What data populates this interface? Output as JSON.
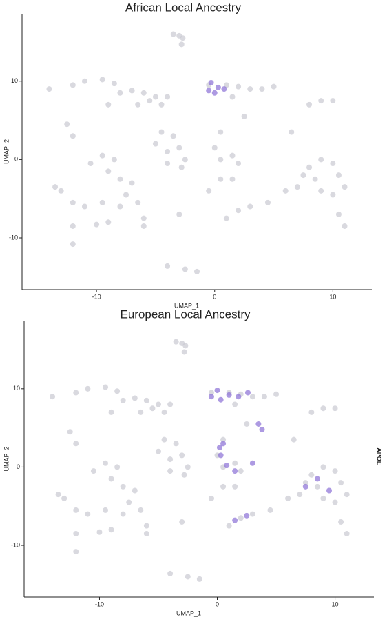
{
  "chart_data": [
    {
      "type": "scatter",
      "title": "African Local Ancestry",
      "x_label": "UMAP_1",
      "y_label": "UMAP_2",
      "xlim": [
        -16.3,
        13.3
      ],
      "ylim": [
        -16.6,
        18.6
      ],
      "xticks": [
        -10,
        0,
        10
      ],
      "yticks": [
        -10,
        0,
        10
      ],
      "series": [
        {
          "color": "#c9c9d1",
          "x": [
            -3.5,
            -3,
            -2.7,
            -2.8,
            -14,
            -12,
            -11,
            -9.5,
            -8.5,
            -8,
            -7,
            -6,
            -5.5,
            -6.5,
            -5,
            -4,
            -4.5,
            -9,
            -12.5,
            -12,
            -4.5,
            -5,
            -4,
            -3,
            -3.5,
            -2.5,
            -2.8,
            -4,
            -10.5,
            -9.5,
            -8.5,
            -9,
            -8,
            -7,
            -7.5,
            -6.5,
            -8,
            -9.5,
            -11,
            -12,
            -13,
            -13.5,
            -12,
            -10,
            -9,
            -6,
            -6,
            -12,
            -3,
            0.5,
            1.5,
            1,
            2,
            3,
            4.5,
            6,
            7,
            7.5,
            8,
            9,
            10,
            10.5,
            11,
            10,
            9,
            8.5,
            10.5,
            11,
            -0.5,
            1,
            2,
            3,
            4,
            5,
            1.5,
            2.5,
            8,
            9,
            10,
            6.5,
            0.5,
            0,
            0.5,
            1.5,
            2,
            -0.5,
            -2.5,
            -1.5,
            -4
          ],
          "y": [
            16,
            15.8,
            15.5,
            14.7,
            9,
            9.5,
            10,
            10.2,
            9.7,
            8.5,
            8.8,
            8.5,
            7.5,
            7,
            8,
            8,
            7,
            7,
            4.5,
            3,
            3.5,
            2,
            1,
            1.5,
            3,
            0,
            -1,
            -0.5,
            -0.5,
            0.5,
            0,
            -1.5,
            -2.5,
            -3,
            -4.5,
            -5.5,
            -6,
            -5.5,
            -6,
            -5.5,
            -4,
            -3.5,
            -8.5,
            -8.3,
            -8,
            -7.5,
            -8.5,
            -10.8,
            -7,
            -2.5,
            -2.5,
            -7.5,
            -6.5,
            -6,
            -5.5,
            -4,
            -3.5,
            -2,
            -1,
            0,
            -0.5,
            -2,
            -3.5,
            -4.5,
            -4,
            -2.5,
            -7,
            -8.5,
            9.5,
            9.5,
            9.3,
            9,
            9,
            9.3,
            8,
            5.5,
            7,
            7.5,
            7.5,
            3.5,
            3.5,
            1.5,
            0,
            0.5,
            -0.5,
            -4,
            -14,
            -14.3,
            -13.6
          ]
        },
        {
          "color": "#8a6fd6",
          "x": [
            -0.5,
            0,
            0.8,
            -0.3,
            0.3
          ],
          "y": [
            8.8,
            8.5,
            9,
            9.8,
            9.2
          ]
        }
      ]
    },
    {
      "type": "scatter",
      "title": "European Local Ancestry",
      "x_label": "UMAP_1",
      "y_label": "UMAP_2",
      "annotation": "APOE",
      "xlim": [
        -16.4,
        13.3
      ],
      "ylim": [
        -16.6,
        18.7
      ],
      "xticks": [
        -10,
        0,
        10
      ],
      "yticks": [
        -10,
        0,
        10
      ],
      "series": [
        {
          "color": "#c9c9d1",
          "x": [
            -3.5,
            -3,
            -2.7,
            -2.8,
            -14,
            -12,
            -11,
            -9.5,
            -8.5,
            -8,
            -7,
            -6,
            -5.5,
            -6.5,
            -5,
            -4,
            -4.5,
            -9,
            -12.5,
            -12,
            -4.5,
            -5,
            -4,
            -3,
            -3.5,
            -2.5,
            -2.8,
            -4,
            -10.5,
            -9.5,
            -8.5,
            -9,
            -8,
            -7,
            -7.5,
            -6.5,
            -8,
            -9.5,
            -11,
            -12,
            -13,
            -13.5,
            -12,
            -10,
            -9,
            -6,
            -6,
            -12,
            -3,
            0.5,
            1.5,
            1,
            2,
            3,
            4.5,
            6,
            7,
            7.5,
            8,
            9,
            10,
            10.5,
            11,
            10,
            9,
            8.5,
            10.5,
            11,
            -0.5,
            1,
            2,
            3,
            4,
            5,
            1.5,
            2.5,
            8,
            9,
            10,
            6.5,
            0.5,
            0,
            0.5,
            1.5,
            2,
            -0.5,
            -2.5,
            -1.5,
            -4
          ],
          "y": [
            16,
            15.8,
            15.5,
            14.7,
            9,
            9.5,
            10,
            10.2,
            9.7,
            8.5,
            8.8,
            8.5,
            7.5,
            7,
            8,
            8,
            7,
            7,
            4.5,
            3,
            3.5,
            2,
            1,
            1.5,
            3,
            0,
            -1,
            -0.5,
            -0.5,
            0.5,
            0,
            -1.5,
            -2.5,
            -3,
            -4.5,
            -5.5,
            -6,
            -5.5,
            -6,
            -5.5,
            -4,
            -3.5,
            -8.5,
            -8.3,
            -8,
            -7.5,
            -8.5,
            -10.8,
            -7,
            -2.5,
            -2.5,
            -7.5,
            -6.5,
            -6,
            -5.5,
            -4,
            -3.5,
            -2,
            -1,
            0,
            -0.5,
            -2,
            -3.5,
            -4.5,
            -4,
            -2.5,
            -7,
            -8.5,
            9.5,
            9.5,
            9.3,
            9,
            9,
            9.3,
            8,
            5.5,
            7,
            7.5,
            7.5,
            3.5,
            3.5,
            1.5,
            0,
            0.5,
            -0.5,
            -4,
            -14,
            -14.3,
            -13.6
          ]
        },
        {
          "color": "#8a6fd6",
          "x": [
            -0.5,
            0.3,
            1,
            0,
            1.8,
            2.6,
            0.5,
            0.3,
            0.8,
            1.5,
            0.2,
            3.5,
            3.8,
            2.5,
            1.5,
            7.5,
            8.5,
            9.5,
            3
          ],
          "y": [
            9,
            8.6,
            9.2,
            9.8,
            9,
            9.5,
            3,
            1.5,
            0.2,
            -0.5,
            2.5,
            5.5,
            4.8,
            -6.2,
            -6.8,
            -2.5,
            -1.5,
            -3,
            0.5
          ]
        }
      ]
    }
  ]
}
